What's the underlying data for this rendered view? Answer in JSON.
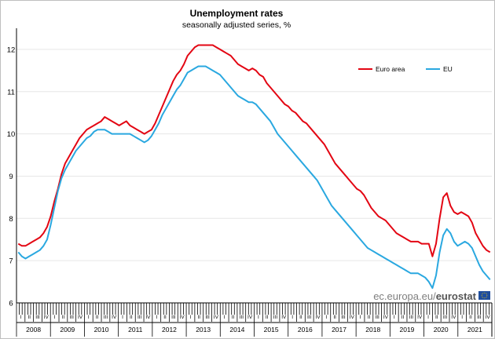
{
  "chart_data": {
    "type": "line",
    "title": "Unemployment rates",
    "subtitle": "seasonally adjusted series, %",
    "xlabel": "",
    "ylabel": "",
    "ylim": [
      6,
      12.5
    ],
    "yticks": [
      6,
      7,
      8,
      9,
      10,
      11,
      12
    ],
    "quarter_labels": [
      "I",
      "II",
      "III",
      "IV"
    ],
    "years": [
      "2008",
      "2009",
      "2010",
      "2011",
      "2012",
      "2013",
      "2014",
      "2015",
      "2016",
      "2017",
      "2018",
      "2019",
      "2020",
      "2021"
    ],
    "grid": "horizontal",
    "legend_position": "top-right",
    "x_start": "2008-01",
    "x_end": "2021-12",
    "series": [
      {
        "name": "Euro area",
        "color": "#e30613",
        "values": [
          7.4,
          7.35,
          7.35,
          7.4,
          7.45,
          7.5,
          7.55,
          7.65,
          7.8,
          8.05,
          8.4,
          8.7,
          9.05,
          9.3,
          9.45,
          9.6,
          9.75,
          9.9,
          10.0,
          10.1,
          10.15,
          10.2,
          10.25,
          10.3,
          10.4,
          10.35,
          10.3,
          10.25,
          10.2,
          10.25,
          10.3,
          10.2,
          10.15,
          10.1,
          10.05,
          10.0,
          10.05,
          10.1,
          10.25,
          10.45,
          10.65,
          10.85,
          11.05,
          11.25,
          11.4,
          11.5,
          11.65,
          11.85,
          11.95,
          12.05,
          12.1,
          12.1,
          12.1,
          12.1,
          12.1,
          12.05,
          12.0,
          11.95,
          11.9,
          11.85,
          11.75,
          11.65,
          11.6,
          11.55,
          11.5,
          11.55,
          11.5,
          11.4,
          11.35,
          11.2,
          11.1,
          11.0,
          10.9,
          10.8,
          10.7,
          10.65,
          10.55,
          10.5,
          10.4,
          10.3,
          10.25,
          10.15,
          10.05,
          9.95,
          9.85,
          9.75,
          9.6,
          9.45,
          9.3,
          9.2,
          9.1,
          9.0,
          8.9,
          8.8,
          8.7,
          8.65,
          8.55,
          8.4,
          8.25,
          8.15,
          8.05,
          8.0,
          7.95,
          7.85,
          7.75,
          7.65,
          7.6,
          7.55,
          7.5,
          7.45,
          7.45,
          7.45,
          7.4,
          7.4,
          7.4,
          7.1,
          7.4,
          8.0,
          8.5,
          8.6,
          8.3,
          8.15,
          8.1,
          8.15,
          8.1,
          8.05,
          7.9,
          7.65,
          7.5,
          7.35,
          7.25,
          7.2
        ]
      },
      {
        "name": "EU",
        "color": "#2aa8e0",
        "values": [
          7.2,
          7.1,
          7.05,
          7.1,
          7.15,
          7.2,
          7.25,
          7.35,
          7.5,
          7.85,
          8.25,
          8.65,
          8.95,
          9.15,
          9.3,
          9.45,
          9.6,
          9.7,
          9.8,
          9.9,
          9.95,
          10.05,
          10.1,
          10.1,
          10.1,
          10.05,
          10.0,
          10.0,
          10.0,
          10.0,
          10.0,
          10.0,
          9.95,
          9.9,
          9.85,
          9.8,
          9.85,
          9.95,
          10.1,
          10.25,
          10.45,
          10.6,
          10.75,
          10.9,
          11.05,
          11.15,
          11.3,
          11.45,
          11.5,
          11.55,
          11.6,
          11.6,
          11.6,
          11.55,
          11.5,
          11.45,
          11.4,
          11.3,
          11.2,
          11.1,
          11.0,
          10.9,
          10.85,
          10.8,
          10.75,
          10.75,
          10.7,
          10.6,
          10.5,
          10.4,
          10.3,
          10.15,
          10.0,
          9.9,
          9.8,
          9.7,
          9.6,
          9.5,
          9.4,
          9.3,
          9.2,
          9.1,
          9.0,
          8.9,
          8.75,
          8.6,
          8.45,
          8.3,
          8.2,
          8.1,
          8.0,
          7.9,
          7.8,
          7.7,
          7.6,
          7.5,
          7.4,
          7.3,
          7.25,
          7.2,
          7.15,
          7.1,
          7.05,
          7.0,
          6.95,
          6.9,
          6.85,
          6.8,
          6.75,
          6.7,
          6.7,
          6.7,
          6.65,
          6.6,
          6.5,
          6.35,
          6.65,
          7.2,
          7.6,
          7.75,
          7.65,
          7.45,
          7.35,
          7.4,
          7.45,
          7.4,
          7.3,
          7.1,
          6.9,
          6.75,
          6.65,
          6.55
        ]
      }
    ]
  },
  "source": {
    "prefix": "ec.europa.eu/",
    "brand": "eurostat",
    "flag_color": "#1f4e9e",
    "star_color": "#ffcc00"
  }
}
